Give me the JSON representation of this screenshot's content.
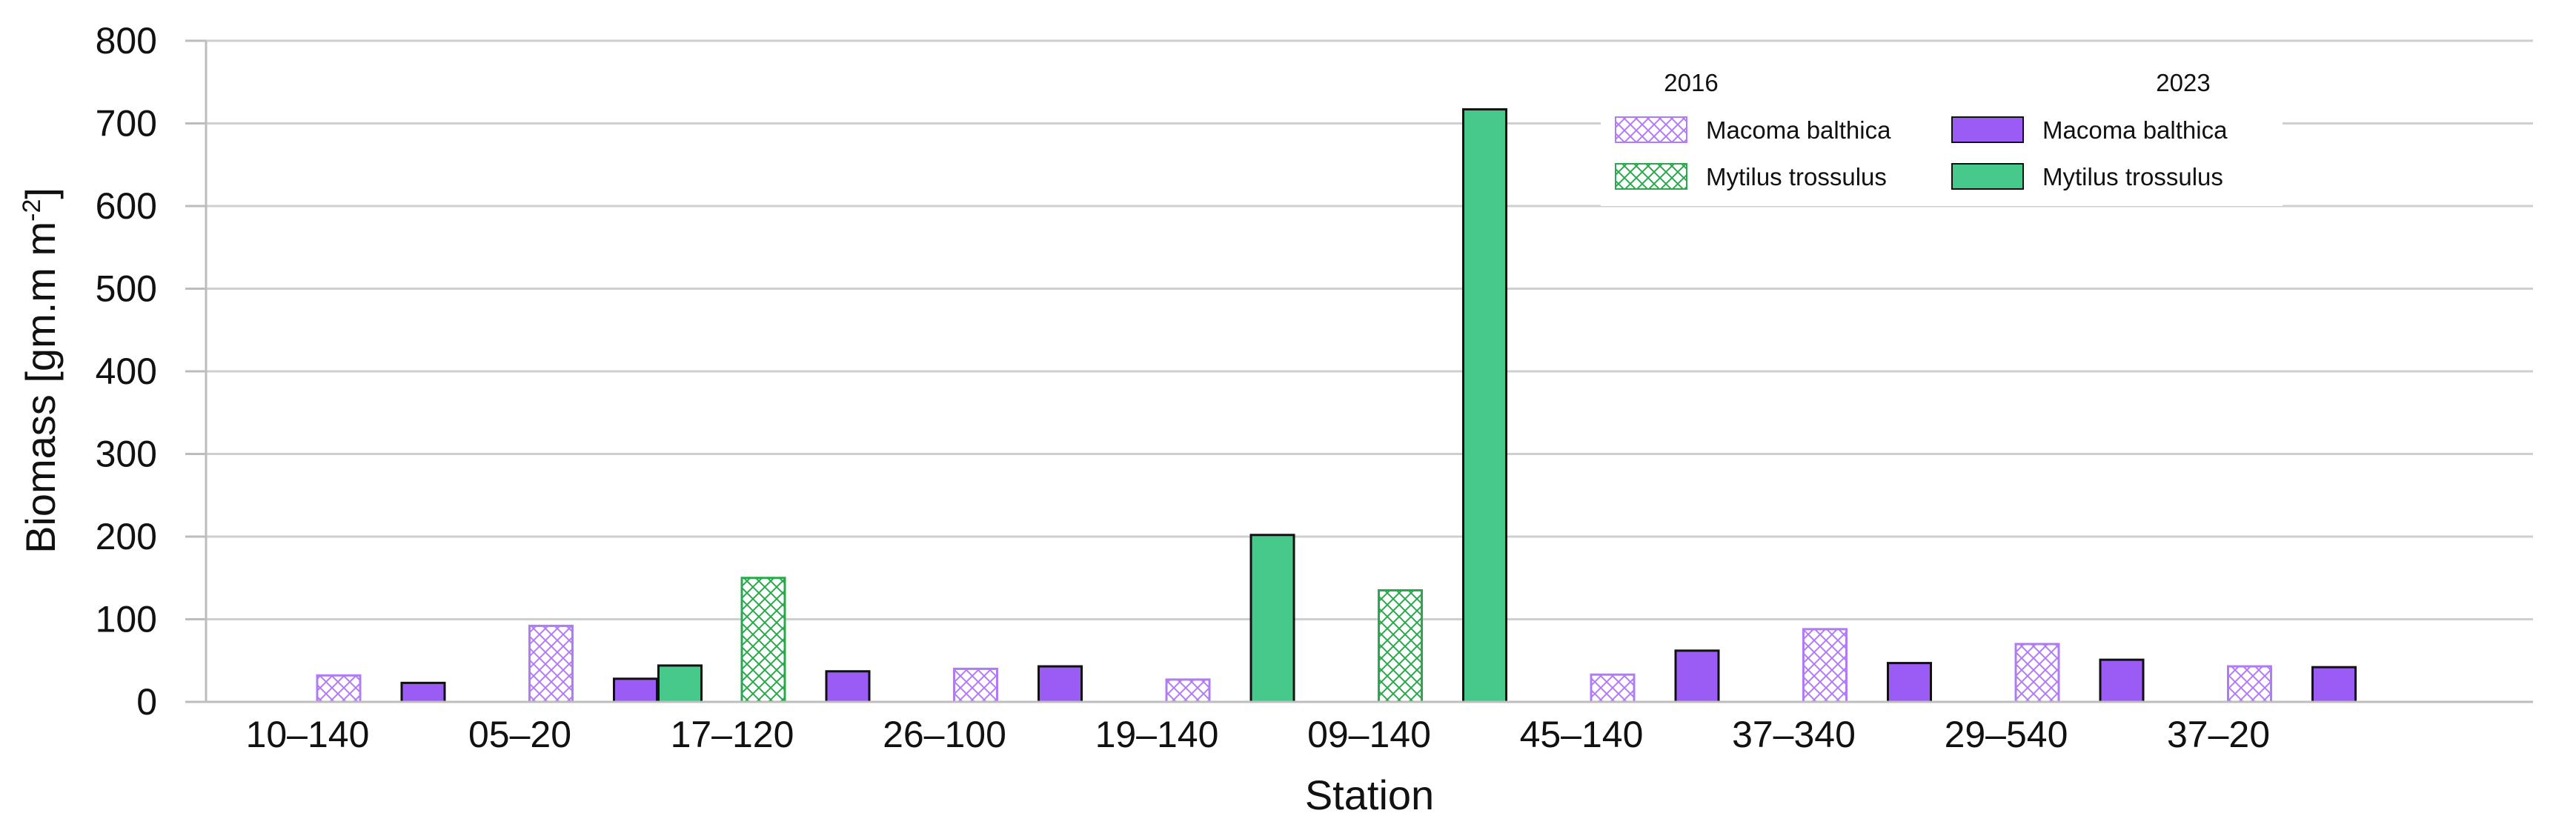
{
  "chart_data": {
    "type": "bar",
    "xlabel": "Station",
    "ylabel_main": "Biomass [gm.m m",
    "ylabel_sup": "-2",
    "ylabel_end": "]",
    "ylim": [
      0,
      800
    ],
    "yticks": [
      0,
      100,
      200,
      300,
      400,
      500,
      600,
      700,
      800
    ],
    "grid": true,
    "legend_placement": "top-right",
    "categories": [
      "10–140",
      "05–20",
      "17–120",
      "26–100",
      "19–140",
      "09–140",
      "45–140",
      "37–340",
      "29–540",
      "37–20"
    ],
    "legend_years": [
      "2016",
      "2023"
    ],
    "series": [
      {
        "name": "Macoma balthica",
        "year": "2016",
        "pattern": "hatched",
        "color": "#b07cf5",
        "values": [
          32,
          92,
          0,
          40,
          27,
          0,
          33,
          88,
          70,
          43
        ]
      },
      {
        "name": "Mytilus trossulus",
        "year": "2016",
        "pattern": "hatched",
        "color": "#2aa84e",
        "values": [
          0,
          0,
          150,
          0,
          0,
          135,
          0,
          0,
          0,
          0
        ]
      },
      {
        "name": "Macoma balthica",
        "year": "2023",
        "pattern": "solid",
        "color": "#9b5cf6",
        "values": [
          23,
          28,
          37,
          43,
          0,
          0,
          62,
          47,
          51,
          42
        ]
      },
      {
        "name": "Mytilus trossulus",
        "year": "2023",
        "pattern": "solid",
        "color": "#46c98a",
        "values": [
          0,
          44,
          0,
          0,
          202,
          717,
          0,
          0,
          0,
          0
        ]
      }
    ]
  }
}
